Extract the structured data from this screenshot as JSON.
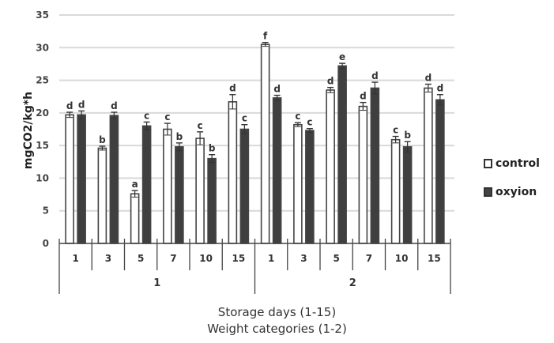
{
  "chart_data": {
    "type": "bar",
    "title": "",
    "ylabel": "mgCO2/kg*h",
    "xlabel": [
      "Storage days (1-15)",
      "Weight categories (1-2)"
    ],
    "ylim": [
      0,
      35
    ],
    "yticks": [
      0,
      5,
      10,
      15,
      20,
      25,
      30,
      35
    ],
    "grid": true,
    "legend_position": "right",
    "groups": [
      {
        "label": "1",
        "categories": [
          "1",
          "3",
          "5",
          "7",
          "10",
          "15"
        ]
      },
      {
        "label": "2",
        "categories": [
          "1",
          "3",
          "5",
          "7",
          "10",
          "15"
        ]
      }
    ],
    "categories": [
      "1-1",
      "1-3",
      "1-5",
      "1-7",
      "1-10",
      "1-15",
      "2-1",
      "2-3",
      "2-5",
      "2-7",
      "2-10",
      "2-15"
    ],
    "series": [
      {
        "name": "control",
        "color": "#ffffff",
        "values": [
          19.7,
          14.6,
          7.6,
          17.5,
          16.1,
          21.7,
          30.5,
          18.2,
          23.5,
          21.0,
          15.9,
          23.8
        ],
        "errors": [
          0.4,
          0.3,
          0.5,
          0.9,
          1.0,
          1.1,
          0.3,
          0.3,
          0.4,
          0.6,
          0.5,
          0.6
        ],
        "significance": [
          "d",
          "b",
          "a",
          "c",
          "c",
          "d",
          "f",
          "c",
          "d",
          "d",
          "c",
          "d"
        ]
      },
      {
        "name": "oxyion",
        "color": "#444444",
        "values": [
          19.7,
          19.6,
          18.0,
          14.8,
          13.0,
          17.5,
          22.3,
          17.3,
          27.2,
          23.8,
          14.8,
          22.0
        ],
        "errors": [
          0.6,
          0.5,
          0.6,
          0.6,
          0.6,
          0.7,
          0.4,
          0.3,
          0.4,
          0.9,
          0.8,
          0.8
        ],
        "significance": [
          "d",
          "d",
          "c",
          "b",
          "b",
          "c",
          "d",
          "c",
          "e",
          "d",
          "b",
          "d"
        ]
      }
    ]
  },
  "legend": {
    "control": "control",
    "oxyion": "oxyion"
  },
  "axis": {
    "x_title_1": "Storage days (1-15)",
    "x_title_2": "Weight categories (1-2)"
  }
}
